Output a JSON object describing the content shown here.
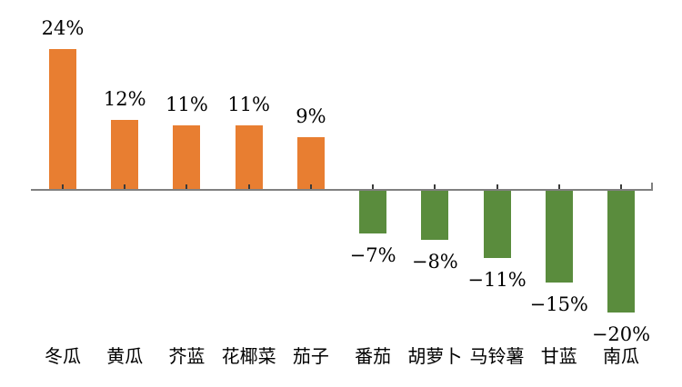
{
  "chart_data": {
    "type": "bar",
    "title": "",
    "xlabel": "",
    "ylabel": "",
    "legend_position": "none",
    "grid": false,
    "ylim": [
      -24,
      28
    ],
    "categories": [
      "冬瓜",
      "黄瓜",
      "芥蓝",
      "花椰菜",
      "茄子",
      "番茄",
      "胡萝卜",
      "马铃薯",
      "甘蓝",
      "南瓜"
    ],
    "values": [
      24,
      12,
      11,
      11,
      9,
      -7,
      -8,
      -11,
      -15,
      -20
    ],
    "value_labels": [
      "24%",
      "12%",
      "11%",
      "11%",
      "9%",
      "−7%",
      "−8%",
      "−11%",
      "−15%",
      "−20%"
    ],
    "colors": {
      "positive_bar": "#E87E31",
      "negative_bar": "#5A8C3D",
      "axis": "#808080",
      "tick": "#3A3A3A",
      "text": "#000000"
    }
  }
}
